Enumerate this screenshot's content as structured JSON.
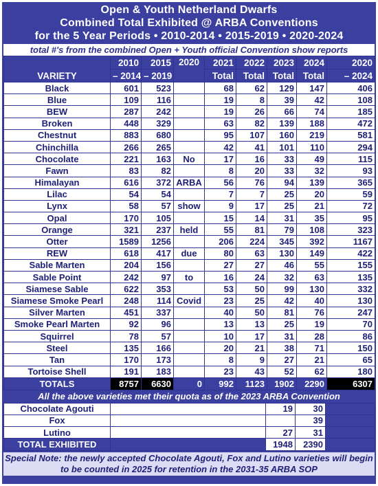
{
  "title": {
    "line1": "Open & Youth Netherland Dwarfs",
    "line2": "Combined Total Exhibited @ ARBA Conventions",
    "line3": "for the 5 Year Periods • 2010-2014 • 2015-2019 • 2020-2024"
  },
  "subtitle": "total #'s from the combined Open + Youth official Convention show reports",
  "header": {
    "variety": "VARIETY",
    "c1": [
      "2010",
      "– 2014"
    ],
    "c2": [
      "2015",
      "– 2019"
    ],
    "c3": [
      "2020",
      ""
    ],
    "c4": [
      "2021",
      "Total"
    ],
    "c5": [
      "2022",
      "Total"
    ],
    "c6": [
      "2023",
      "Total"
    ],
    "c7": [
      "2024",
      "Total"
    ],
    "c8": [
      "2020",
      "– 2024"
    ]
  },
  "rows": [
    {
      "variety": "Black",
      "p1": "601",
      "p2": "523",
      "n2020": "",
      "y2021": "68",
      "y2022": "62",
      "y2023": "129",
      "y2024": "147",
      "p3": "406"
    },
    {
      "variety": "Blue",
      "p1": "109",
      "p2": "116",
      "n2020": "",
      "y2021": "19",
      "y2022": "8",
      "y2023": "39",
      "y2024": "42",
      "p3": "108"
    },
    {
      "variety": "BEW",
      "p1": "287",
      "p2": "242",
      "n2020": "",
      "y2021": "19",
      "y2022": "26",
      "y2023": "66",
      "y2024": "74",
      "p3": "185"
    },
    {
      "variety": "Broken",
      "p1": "448",
      "p2": "329",
      "n2020": "",
      "y2021": "63",
      "y2022": "82",
      "y2023": "139",
      "y2024": "188",
      "p3": "472"
    },
    {
      "variety": "Chestnut",
      "p1": "883",
      "p2": "680",
      "n2020": "",
      "y2021": "95",
      "y2022": "107",
      "y2023": "160",
      "y2024": "219",
      "p3": "581"
    },
    {
      "variety": "Chinchilla",
      "p1": "266",
      "p2": "265",
      "n2020": "",
      "y2021": "42",
      "y2022": "41",
      "y2023": "101",
      "y2024": "110",
      "p3": "294"
    },
    {
      "variety": "Chocolate",
      "p1": "221",
      "p2": "163",
      "n2020": "No",
      "y2021": "17",
      "y2022": "16",
      "y2023": "33",
      "y2024": "49",
      "p3": "115"
    },
    {
      "variety": "Fawn",
      "p1": "83",
      "p2": "82",
      "n2020": "",
      "y2021": "8",
      "y2022": "20",
      "y2023": "33",
      "y2024": "32",
      "p3": "93"
    },
    {
      "variety": "Himalayan",
      "p1": "616",
      "p2": "372",
      "n2020": "ARBA",
      "y2021": "56",
      "y2022": "76",
      "y2023": "94",
      "y2024": "139",
      "p3": "365"
    },
    {
      "variety": "Lilac",
      "p1": "54",
      "p2": "54",
      "n2020": "",
      "y2021": "7",
      "y2022": "7",
      "y2023": "25",
      "y2024": "20",
      "p3": "59"
    },
    {
      "variety": "Lynx",
      "p1": "58",
      "p2": "57",
      "n2020": "show",
      "y2021": "9",
      "y2022": "17",
      "y2023": "25",
      "y2024": "21",
      "p3": "72"
    },
    {
      "variety": "Opal",
      "p1": "170",
      "p2": "105",
      "n2020": "",
      "y2021": "15",
      "y2022": "14",
      "y2023": "31",
      "y2024": "35",
      "p3": "95"
    },
    {
      "variety": "Orange",
      "p1": "321",
      "p2": "237",
      "n2020": "held",
      "y2021": "55",
      "y2022": "81",
      "y2023": "79",
      "y2024": "108",
      "p3": "323"
    },
    {
      "variety": "Otter",
      "p1": "1589",
      "p2": "1256",
      "n2020": "",
      "y2021": "206",
      "y2022": "224",
      "y2023": "345",
      "y2024": "392",
      "p3": "1167"
    },
    {
      "variety": "REW",
      "p1": "618",
      "p2": "417",
      "n2020": "due",
      "y2021": "80",
      "y2022": "63",
      "y2023": "130",
      "y2024": "149",
      "p3": "422"
    },
    {
      "variety": "Sable Marten",
      "p1": "204",
      "p2": "156",
      "n2020": "",
      "y2021": "27",
      "y2022": "27",
      "y2023": "46",
      "y2024": "55",
      "p3": "155"
    },
    {
      "variety": "Sable Point",
      "p1": "242",
      "p2": "97",
      "n2020": "to",
      "y2021": "16",
      "y2022": "24",
      "y2023": "32",
      "y2024": "63",
      "p3": "135"
    },
    {
      "variety": "Siamese Sable",
      "p1": "622",
      "p2": "353",
      "n2020": "",
      "y2021": "53",
      "y2022": "50",
      "y2023": "99",
      "y2024": "130",
      "p3": "332"
    },
    {
      "variety": "Siamese Smoke Pearl",
      "p1": "248",
      "p2": "114",
      "n2020": "Covid",
      "y2021": "23",
      "y2022": "25",
      "y2023": "42",
      "y2024": "40",
      "p3": "130"
    },
    {
      "variety": "Silver Marten",
      "p1": "451",
      "p2": "337",
      "n2020": "",
      "y2021": "40",
      "y2022": "50",
      "y2023": "81",
      "y2024": "76",
      "p3": "247"
    },
    {
      "variety": "Smoke Pearl Marten",
      "p1": "92",
      "p2": "96",
      "n2020": "",
      "y2021": "13",
      "y2022": "13",
      "y2023": "25",
      "y2024": "19",
      "p3": "70"
    },
    {
      "variety": "Squirrel",
      "p1": "78",
      "p2": "57",
      "n2020": "",
      "y2021": "10",
      "y2022": "17",
      "y2023": "31",
      "y2024": "28",
      "p3": "86"
    },
    {
      "variety": "Steel",
      "p1": "135",
      "p2": "166",
      "n2020": "",
      "y2021": "20",
      "y2022": "21",
      "y2023": "38",
      "y2024": "71",
      "p3": "150"
    },
    {
      "variety": "Tan",
      "p1": "170",
      "p2": "173",
      "n2020": "",
      "y2021": "8",
      "y2022": "9",
      "y2023": "27",
      "y2024": "21",
      "p3": "65"
    },
    {
      "variety": "Tortoise Shell",
      "p1": "191",
      "p2": "183",
      "n2020": "",
      "y2021": "23",
      "y2022": "43",
      "y2023": "52",
      "y2024": "62",
      "p3": "180"
    }
  ],
  "totals": {
    "label": "TOTALS",
    "p1": "8757",
    "p2": "6630",
    "n2020": "0",
    "y2021": "992",
    "y2022": "1123",
    "y2023": "1902",
    "y2024": "2290",
    "p3": "6307"
  },
  "quota_note": "All the above varieties met their quota as of the 2023 ARBA Convention",
  "new_varieties": [
    {
      "variety": "Chocolate Agouti",
      "y2023": "19",
      "y2024": "30"
    },
    {
      "variety": "Fox",
      "y2023": "",
      "y2024": "39"
    },
    {
      "variety": "Lutino",
      "y2023": "27",
      "y2024": "31"
    }
  ],
  "total_exhibited": {
    "label": "TOTAL EXHIBITED",
    "y2023": "1948",
    "y2024": "2390"
  },
  "special_note": "Special Note: the newly accepted Chocolate Agouti, Fox and Lutino varieties will begin to be counted in 2025 for retention in the 2031-35 ARBA SOP",
  "colors": {
    "frame": "#3b3fa0",
    "text": "#1f2078",
    "note_bg": "#dcdcf4"
  }
}
